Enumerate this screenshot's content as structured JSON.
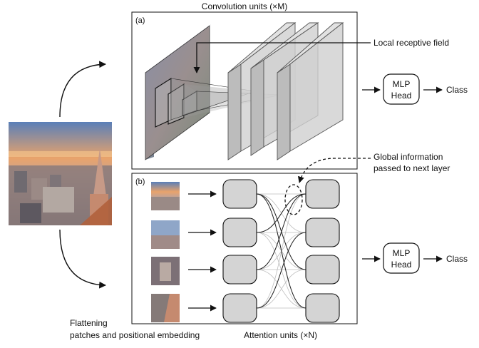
{
  "titles": {
    "conv": "Convolution units (×M)",
    "attention": "Attention units (×N)"
  },
  "panels": {
    "a": "(a)",
    "b": "(b)"
  },
  "annotations": {
    "local": "Local receptive field",
    "global_line1": "Global information",
    "global_line2": "passed to next layer",
    "flatten_line1": "Flattening",
    "flatten_line2": "patches and positional embedding"
  },
  "heads": {
    "top": {
      "line1": "MLP",
      "line2": "Head",
      "output": "Class"
    },
    "bottom": {
      "line1": "MLP",
      "line2": "Head",
      "output": "Class"
    }
  },
  "colors": {
    "sky_top": "#5a7fb8",
    "sky_mid": "#e9a36b",
    "city": "#8a7a7a",
    "spire": "#c79a87",
    "node_fill": "#d4d4d4",
    "plane_fill": "#cfcfcf"
  }
}
